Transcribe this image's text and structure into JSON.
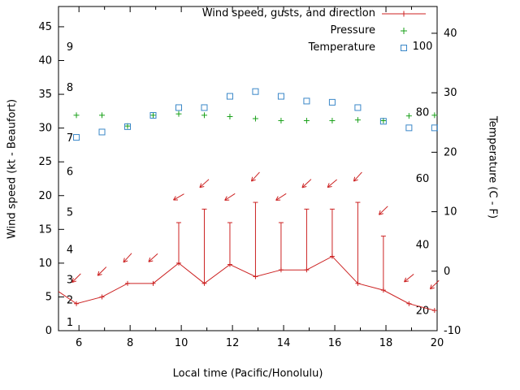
{
  "colors": {
    "wind": "#cc2222",
    "pressure": "#18a018",
    "temperature": "#3a87c8",
    "axis": "#000000",
    "background": "#ffffff"
  },
  "labels": {
    "left_axis": "Wind speed (kt - Beaufort)",
    "right_axis": "Temperature (C - F)",
    "x_axis": "Local time (Pacific/Honolulu)"
  },
  "legend": {
    "wind": "Wind speed, gusts, and direction",
    "pressure": "Pressure",
    "temperature": "Temperature"
  },
  "chart_data": {
    "type": "line",
    "title": "",
    "xlabel": "Local time (Pacific/Honolulu)",
    "ylabel_left": "Wind speed (kt - Beaufort)",
    "ylabel_right": "Temperature (C - F)",
    "x_range": [
      5.2,
      20
    ],
    "x_major_ticks": [
      6,
      8,
      10,
      12,
      14,
      16,
      18,
      20
    ],
    "x_minor_ticks": [
      7,
      9,
      11,
      13,
      15,
      17,
      19
    ],
    "y_left_range": [
      0,
      48
    ],
    "y_left_ticks": [
      0,
      5,
      10,
      15,
      20,
      25,
      30,
      35,
      40,
      45
    ],
    "y_right_range_c": [
      -10,
      44.5
    ],
    "y_right_ticks_c": [
      -10,
      0,
      10,
      20,
      30,
      40
    ],
    "beaufort_labels": [
      {
        "b": "1",
        "kt": 1.2
      },
      {
        "b": "2",
        "kt": 4.5
      },
      {
        "b": "3",
        "kt": 7.5
      },
      {
        "b": "4",
        "kt": 12
      },
      {
        "b": "5",
        "kt": 17.5
      },
      {
        "b": "6",
        "kt": 23.5
      },
      {
        "b": "7",
        "kt": 28.5
      },
      {
        "b": "8",
        "kt": 36
      },
      {
        "b": "9",
        "kt": 42
      }
    ],
    "fahrenheit_labels": [
      20,
      40,
      60,
      80,
      100
    ],
    "times": [
      5.9,
      6.9,
      7.9,
      8.9,
      9.9,
      10.9,
      11.9,
      12.9,
      13.9,
      14.9,
      15.9,
      16.9,
      17.9,
      18.9,
      19.9
    ],
    "wind_line_start": {
      "t": 5.2,
      "kt": 5.8
    },
    "wind_speed_kt": [
      4,
      5,
      7,
      7,
      10,
      7,
      9.8,
      8,
      9,
      9,
      11,
      7,
      6,
      4,
      3
    ],
    "wind_gust_kt": [
      null,
      null,
      null,
      null,
      16,
      18,
      16,
      19,
      16,
      18,
      18,
      19,
      14,
      null,
      null
    ],
    "wind_dir_deg_screen": [
      225,
      225,
      222,
      228,
      240,
      228,
      237,
      222,
      237,
      227,
      230,
      222,
      226,
      231,
      226
    ],
    "arrow_offset_kt": 3.8,
    "pressure_plotted_kt_axis": [
      31.9,
      31.9,
      30.3,
      31.9,
      32.1,
      31.9,
      31.7,
      31.4,
      31.1,
      31.1,
      31.1,
      31.2,
      31.1,
      31.8,
      31.9
    ],
    "temperature_c": [
      22.5,
      23.4,
      24.3,
      26.2,
      27.5,
      27.5,
      29.4,
      30.2,
      29.4,
      28.6,
      28.4,
      27.5,
      25.2,
      24.1,
      24.1
    ]
  }
}
